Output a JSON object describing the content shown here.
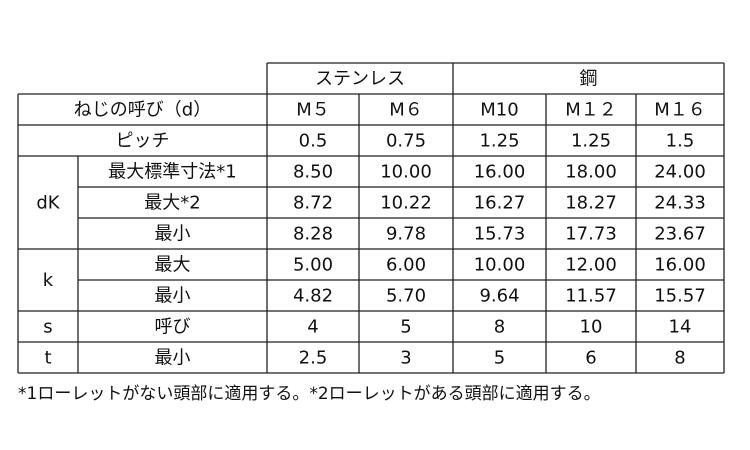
{
  "header": {
    "groups": [
      "ステンレス",
      "鋼"
    ]
  },
  "table": {
    "rows": [
      {
        "label": "ねじの呼び（d）",
        "cells": [
          "M５",
          "M６",
          "M10",
          "M１２",
          "M１６"
        ]
      },
      {
        "label": "ピッチ",
        "cells": [
          "0.5",
          "0.75",
          "1.25",
          "1.25",
          "1.5"
        ]
      },
      {
        "group": "dK",
        "rows": [
          {
            "label": "最大標準寸法*1",
            "cells": [
              "8.50",
              "10.00",
              "16.00",
              "18.00",
              "24.00"
            ]
          },
          {
            "label": "最大*2",
            "cells": [
              "8.72",
              "10.22",
              "16.27",
              "18.27",
              "24.33"
            ]
          },
          {
            "label": "最小",
            "cells": [
              "8.28",
              "9.78",
              "15.73",
              "17.73",
              "23.67"
            ]
          }
        ]
      },
      {
        "group": "k",
        "rows": [
          {
            "label": "最大",
            "cells": [
              "5.00",
              "6.00",
              "10.00",
              "12.00",
              "16.00"
            ]
          },
          {
            "label": "最小",
            "cells": [
              "4.82",
              "5.70",
              "9.64",
              "11.57",
              "15.57"
            ]
          }
        ]
      },
      {
        "group": "s",
        "rows": [
          {
            "label": "呼び",
            "cells": [
              "4",
              "5",
              "8",
              "10",
              "14"
            ]
          }
        ]
      },
      {
        "group": "t",
        "rows": [
          {
            "label": "最小",
            "cells": [
              "2.5",
              "3",
              "5",
              "6",
              "8"
            ]
          }
        ]
      }
    ]
  },
  "footnote": "*1ローレットがない頭部に適用する。*2ローレットがある頭部に適用する。"
}
